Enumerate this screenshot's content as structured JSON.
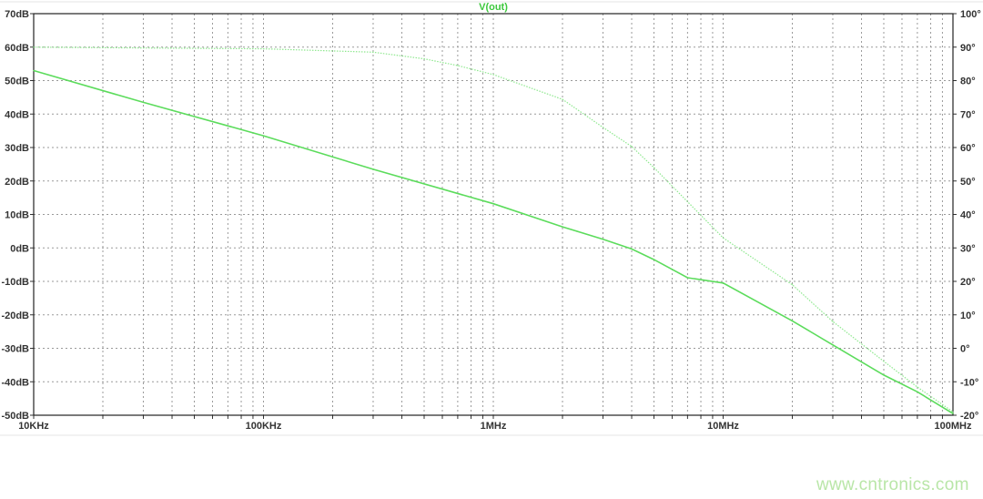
{
  "chart_data": {
    "type": "line",
    "title": "V(out)",
    "x_scale": "log",
    "xlim": [
      10000,
      100000000
    ],
    "x_tick_labels": [
      "10KHz",
      "100KHz",
      "1MHz",
      "10MHz",
      "100MHz"
    ],
    "y_left": {
      "range": [
        -50,
        70
      ],
      "unit": "dB",
      "tick_labels": [
        "70dB",
        "60dB",
        "50dB",
        "40dB",
        "30dB",
        "20dB",
        "10dB",
        "0dB",
        "-10dB",
        "-20dB",
        "-30dB",
        "-40dB",
        "-50dB"
      ]
    },
    "y_right": {
      "range": [
        -20,
        100
      ],
      "unit": "°",
      "tick_labels": [
        "100°",
        "90°",
        "80°",
        "70°",
        "60°",
        "50°",
        "40°",
        "30°",
        "20°",
        "10°",
        "0°",
        "-10°",
        "-20°"
      ]
    },
    "grid": true,
    "series": [
      {
        "axis": "left",
        "style": "solid",
        "color": "#5cdc5c",
        "x": [
          10000,
          30000,
          100000,
          300000,
          1000000,
          2000000,
          3000000,
          4000000,
          5000000,
          7000000,
          10000000,
          20000000,
          30000000,
          50000000,
          70000000,
          100000000
        ],
        "y": [
          53,
          43.5,
          33.5,
          23.5,
          13.2,
          6.3,
          2.6,
          -0.3,
          -3.5,
          -8.9,
          -10.5,
          -21.8,
          -29,
          -38,
          -43,
          -49.5
        ]
      },
      {
        "axis": "right",
        "style": "dotted",
        "color": "#8ee88e",
        "x": [
          10000,
          100000,
          300000,
          500000,
          700000,
          1000000,
          2000000,
          3000000,
          4000000,
          5000000,
          10000000,
          20000000,
          30000000,
          50000000,
          70000000,
          100000000
        ],
        "y": [
          90,
          89.5,
          88.5,
          86.5,
          84.5,
          81.8,
          74.4,
          66,
          60.3,
          54,
          33,
          19,
          8,
          -3.9,
          -11.6,
          -19
        ]
      }
    ]
  },
  "watermark": "www.cntronics.com",
  "colors": {
    "trace": "#5cdc5c",
    "title": "#3cc83c",
    "grid": "#9a9a9a",
    "watermark": "#b9e6a8"
  }
}
